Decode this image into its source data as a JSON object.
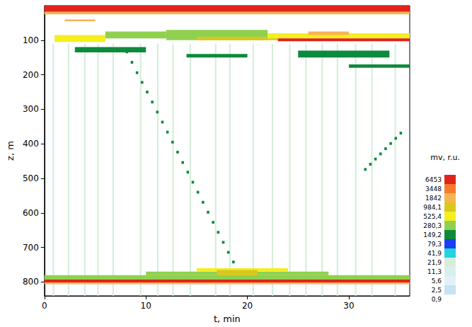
{
  "chart_data": {
    "type": "heatmap",
    "x_label": "t, min",
    "y_label": "z, m",
    "xlim": [
      0,
      36
    ],
    "xticks": [
      0,
      10,
      20,
      30
    ],
    "ylim": [
      0,
      840
    ],
    "yticks": [
      100,
      200,
      300,
      400,
      500,
      600,
      700,
      800
    ],
    "y_inverted": true,
    "grid": false,
    "colorbar": {
      "title": "mv, r.u.",
      "levels": [
        {
          "value": 0.9,
          "label": "0,9"
        },
        {
          "value": 2.5,
          "label": "2,5"
        },
        {
          "value": 5.6,
          "label": "5,6"
        },
        {
          "value": 11.3,
          "label": "11,3"
        },
        {
          "value": 21.9,
          "label": "21,9"
        },
        {
          "value": 41.9,
          "label": "41,9"
        },
        {
          "value": 79.3,
          "label": "79,3"
        },
        {
          "value": 149.2,
          "label": "149,2"
        },
        {
          "value": 280.3,
          "label": "280,3"
        },
        {
          "value": 525.4,
          "label": "525,4"
        },
        {
          "value": 984.1,
          "label": "984,1"
        },
        {
          "value": 1842,
          "label": "1842"
        },
        {
          "value": 3448,
          "label": "3448"
        },
        {
          "value": 6453,
          "label": "6453"
        }
      ],
      "colors": [
        "#ffffff",
        "#c6e2f5",
        "#e2f0f8",
        "#d9efee",
        "#d6eedb",
        "#22d3e0",
        "#1a3ff0",
        "#0d8a3c",
        "#8fd14f",
        "#f5ee1e",
        "#d9c81c",
        "#f7b453",
        "#f57a2e",
        "#e0241b"
      ]
    },
    "cells": [
      [
        0.8,
        0.95,
        110,
        840,
        21.9
      ],
      [
        2.3,
        2.45,
        110,
        840,
        21.9
      ],
      [
        3.9,
        4.05,
        110,
        840,
        21.9
      ],
      [
        5.2,
        5.35,
        110,
        840,
        21.9
      ],
      [
        6.7,
        6.85,
        110,
        840,
        21.9
      ],
      [
        9.4,
        9.55,
        110,
        840,
        21.9
      ],
      [
        11.1,
        11.25,
        110,
        840,
        21.9
      ],
      [
        12.6,
        12.75,
        110,
        840,
        21.9
      ],
      [
        14.3,
        14.45,
        110,
        840,
        21.9
      ],
      [
        16.8,
        16.95,
        110,
        840,
        21.9
      ],
      [
        18.2,
        18.35,
        110,
        840,
        21.9
      ],
      [
        20.5,
        20.65,
        110,
        840,
        21.9
      ],
      [
        22.4,
        22.55,
        110,
        840,
        21.9
      ],
      [
        24.1,
        24.25,
        110,
        840,
        21.9
      ],
      [
        25.7,
        25.85,
        110,
        840,
        21.9
      ],
      [
        27.3,
        27.45,
        110,
        840,
        21.9
      ],
      [
        28.8,
        28.95,
        110,
        840,
        21.9
      ],
      [
        30.6,
        30.75,
        110,
        840,
        21.9
      ],
      [
        32.2,
        32.35,
        110,
        840,
        21.9
      ],
      [
        34.5,
        34.65,
        110,
        840,
        21.9
      ],
      [
        0,
        36,
        0,
        18,
        6453
      ],
      [
        0,
        36,
        18,
        25,
        1842
      ],
      [
        2,
        5,
        40,
        45,
        1842
      ],
      [
        1,
        6,
        85,
        105,
        525.4
      ],
      [
        6,
        12,
        75,
        95,
        280.3
      ],
      [
        12,
        22,
        70,
        100,
        280.3
      ],
      [
        15,
        23,
        90,
        100,
        984.1
      ],
      [
        22,
        36,
        80,
        95,
        525.4
      ],
      [
        23,
        36,
        95,
        103,
        6453
      ],
      [
        26,
        30,
        75,
        85,
        1842
      ],
      [
        3,
        10,
        120,
        135,
        149.2
      ],
      [
        14,
        20,
        140,
        150,
        149.2
      ],
      [
        25,
        34,
        130,
        150,
        149.2
      ],
      [
        30,
        36,
        170,
        180,
        149.2
      ],
      [
        8,
        8.25,
        130,
        138,
        149.2
      ],
      [
        8.5,
        8.75,
        160,
        168,
        149.2
      ],
      [
        9,
        9.25,
        190,
        198,
        149.2
      ],
      [
        9.5,
        9.75,
        218,
        226,
        149.2
      ],
      [
        10,
        10.25,
        246,
        254,
        149.2
      ],
      [
        10.5,
        10.75,
        275,
        283,
        149.2
      ],
      [
        11,
        11.25,
        304,
        312,
        149.2
      ],
      [
        11.5,
        11.75,
        333,
        341,
        149.2
      ],
      [
        12,
        12.25,
        362,
        370,
        149.2
      ],
      [
        12.5,
        12.75,
        391,
        399,
        149.2
      ],
      [
        13,
        13.25,
        420,
        428,
        149.2
      ],
      [
        13.5,
        13.75,
        450,
        458,
        149.2
      ],
      [
        14,
        14.25,
        478,
        486,
        149.2
      ],
      [
        14.5,
        14.75,
        507,
        515,
        149.2
      ],
      [
        15,
        15.25,
        536,
        544,
        149.2
      ],
      [
        15.5,
        15.75,
        565,
        573,
        149.2
      ],
      [
        16,
        16.25,
        594,
        602,
        149.2
      ],
      [
        16.5,
        16.75,
        623,
        631,
        149.2
      ],
      [
        17,
        17.25,
        652,
        660,
        149.2
      ],
      [
        17.5,
        17.75,
        681,
        689,
        149.2
      ],
      [
        18,
        18.25,
        710,
        718,
        149.2
      ],
      [
        18.5,
        18.75,
        738,
        746,
        149.2
      ],
      [
        19,
        19.25,
        765,
        773,
        149.2
      ],
      [
        31.5,
        31.75,
        470,
        478,
        149.2
      ],
      [
        32,
        32.25,
        455,
        463,
        149.2
      ],
      [
        32.5,
        32.75,
        440,
        448,
        149.2
      ],
      [
        33,
        33.25,
        425,
        433,
        149.2
      ],
      [
        33.5,
        33.75,
        410,
        418,
        149.2
      ],
      [
        34,
        34.25,
        395,
        403,
        149.2
      ],
      [
        34.5,
        34.75,
        380,
        388,
        149.2
      ],
      [
        35,
        35.25,
        365,
        373,
        149.2
      ],
      [
        0,
        36,
        780,
        793,
        280.3
      ],
      [
        10,
        28,
        770,
        780,
        280.3
      ],
      [
        15,
        24,
        760,
        770,
        525.4
      ],
      [
        17,
        21,
        765,
        780,
        984.1
      ],
      [
        0,
        36,
        793,
        801,
        6453
      ],
      [
        0,
        36,
        801,
        806,
        1842
      ]
    ]
  }
}
